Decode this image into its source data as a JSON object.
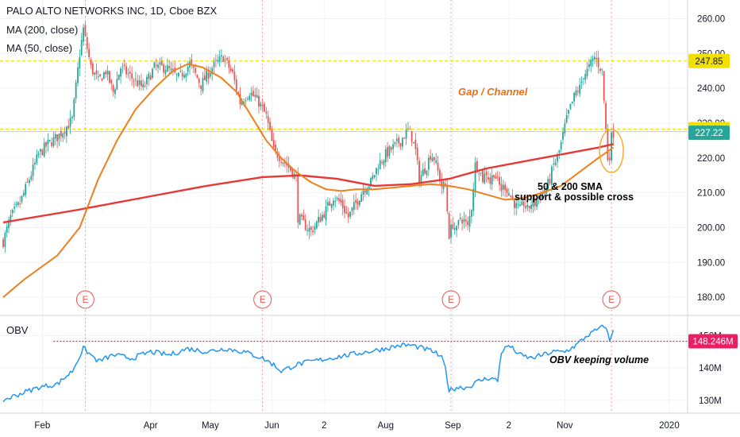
{
  "header": {
    "title": "PALO ALTO NETWORKS INC, 1D, Cboe BZX",
    "ma200_label": "MA (200, close)",
    "ma50_label": "MA (50, close)",
    "obv_label": "OBV"
  },
  "annotations": {
    "gap_channel": "Gap / Channel",
    "sma_line1": "50 & 200 SMA",
    "sma_line2": "support & possible cross",
    "obv_note": "OBV keeping volume"
  },
  "colors": {
    "up": "#26a69a",
    "down": "#ef5350",
    "ma200": "#e53935",
    "ma50": "#ef7f1a",
    "obv_line": "#2196f3",
    "level_line": "#f2e000",
    "obv_level": "#e91e63",
    "earnings": "#ef5350"
  },
  "chart_data": [
    {
      "type": "candlestick",
      "title": "PALO ALTO NETWORKS INC, 1D, Cboe BZX",
      "x_ticks": [
        "Feb",
        "Apr",
        "May",
        "Jun",
        "2",
        "Aug",
        "Sep",
        "2",
        "Nov",
        "2020"
      ],
      "y_ticks": [
        "180.00",
        "190.00",
        "200.00",
        "210.00",
        "220.00",
        "230.00",
        "240.00",
        "250.00",
        "260.00"
      ],
      "ylim": [
        175,
        264
      ],
      "price_labels": [
        {
          "value": 247.85,
          "text": "247.85",
          "color": "#f2e000"
        },
        {
          "value": 228.29,
          "text": "228.29",
          "color": "#f2e000"
        },
        {
          "value": 227.22,
          "text": "227.22",
          "color": "#26a69a"
        }
      ],
      "horizontal_levels": [
        247.85,
        228.29
      ],
      "earnings_markers": [
        "E",
        "E",
        "E",
        "E"
      ],
      "price_path": [
        [
          1,
          196
        ],
        [
          5,
          203
        ],
        [
          10,
          207
        ],
        [
          15,
          214
        ],
        [
          20,
          221
        ],
        [
          25,
          224
        ],
        [
          30,
          226
        ],
        [
          35,
          229
        ],
        [
          38,
          231
        ],
        [
          42,
          250
        ],
        [
          44,
          257
        ],
        [
          48,
          246
        ],
        [
          52,
          242
        ],
        [
          56,
          245
        ],
        [
          60,
          239
        ],
        [
          64,
          246
        ],
        [
          70,
          243
        ],
        [
          76,
          240
        ],
        [
          82,
          246
        ],
        [
          88,
          246
        ],
        [
          95,
          243
        ],
        [
          101,
          247
        ],
        [
          107,
          241
        ],
        [
          113,
          246
        ],
        [
          119,
          249
        ],
        [
          124,
          244
        ],
        [
          128,
          236
        ],
        [
          133,
          239
        ],
        [
          138,
          236
        ],
        [
          142,
          232
        ],
        [
          146,
          222
        ],
        [
          150,
          220
        ],
        [
          153,
          218
        ],
        [
          156,
          216
        ],
        [
          158,
          214
        ],
        [
          159,
          203
        ],
        [
          162,
          201
        ],
        [
          166,
          199
        ],
        [
          170,
          202
        ],
        [
          174,
          205
        ],
        [
          178,
          209
        ],
        [
          182,
          207
        ],
        [
          186,
          203
        ],
        [
          190,
          207
        ],
        [
          194,
          211
        ],
        [
          198,
          213
        ],
        [
          202,
          218
        ],
        [
          206,
          221
        ],
        [
          210,
          223
        ],
        [
          214,
          225
        ],
        [
          218,
          228
        ],
        [
          220,
          226
        ],
        [
          222,
          222
        ],
        [
          224,
          214
        ],
        [
          226,
          216
        ],
        [
          228,
          218
        ],
        [
          230,
          221
        ],
        [
          232,
          220
        ],
        [
          234,
          216
        ],
        [
          236,
          212
        ],
        [
          238,
          212
        ],
        [
          239,
          205
        ],
        [
          240,
          198
        ],
        [
          242,
          201
        ],
        [
          244,
          199
        ],
        [
          246,
          203
        ],
        [
          248,
          202
        ],
        [
          250,
          200
        ],
        [
          252,
          206
        ],
        [
          254,
          218
        ],
        [
          256,
          217
        ],
        [
          258,
          214
        ],
        [
          260,
          216
        ],
        [
          262,
          213
        ],
        [
          264,
          216
        ],
        [
          266,
          213
        ],
        [
          268,
          211
        ],
        [
          270,
          212
        ],
        [
          272,
          210
        ],
        [
          274,
          208
        ],
        [
          276,
          206
        ],
        [
          278,
          205
        ],
        [
          280,
          207
        ],
        [
          282,
          205
        ],
        [
          284,
          207
        ],
        [
          286,
          207
        ],
        [
          288,
          209
        ],
        [
          290,
          210
        ],
        [
          292,
          211
        ],
        [
          294,
          214
        ],
        [
          296,
          218
        ],
        [
          298,
          220
        ],
        [
          300,
          224
        ],
        [
          302,
          229
        ],
        [
          304,
          233
        ],
        [
          306,
          236
        ],
        [
          308,
          239
        ],
        [
          310,
          240
        ],
        [
          312,
          244
        ],
        [
          314,
          245
        ],
        [
          316,
          247
        ],
        [
          318,
          249
        ],
        [
          320,
          247
        ],
        [
          322,
          245
        ],
        [
          324,
          228
        ],
        [
          325,
          220
        ],
        [
          326,
          221
        ],
        [
          327,
          226
        ],
        [
          328,
          227.2
        ]
      ],
      "series": [
        {
          "name": "MA (200, close)",
          "points": [
            [
              1,
              201.5
            ],
            [
              40,
              205
            ],
            [
              80,
              209
            ],
            [
              110,
              212
            ],
            [
              140,
              214.5
            ],
            [
              160,
              215
            ],
            [
              180,
              214
            ],
            [
              200,
              212
            ],
            [
              220,
              212.5
            ],
            [
              240,
              214
            ],
            [
              260,
              217
            ],
            [
              280,
              219
            ],
            [
              300,
              221
            ],
            [
              320,
              223
            ],
            [
              328,
              224
            ]
          ]
        },
        {
          "name": "MA (50, close)",
          "points": [
            [
              1,
              180
            ],
            [
              12,
              185
            ],
            [
              30,
              192
            ],
            [
              42,
              200
            ],
            [
              52,
              214
            ],
            [
              62,
              225
            ],
            [
              72,
              234
            ],
            [
              82,
              240
            ],
            [
              92,
              245
            ],
            [
              100,
              247
            ],
            [
              108,
              246
            ],
            [
              118,
              243
            ],
            [
              126,
              239
            ],
            [
              134,
              232
            ],
            [
              142,
              225
            ],
            [
              150,
              220
            ],
            [
              158,
              216
            ],
            [
              166,
              213
            ],
            [
              174,
              211
            ],
            [
              182,
              210.5
            ],
            [
              190,
              211
            ],
            [
              200,
              211
            ],
            [
              210,
              211.5
            ],
            [
              220,
              212
            ],
            [
              230,
              212.5
            ],
            [
              240,
              212
            ],
            [
              250,
              211
            ],
            [
              260,
              209.5
            ],
            [
              270,
              208
            ],
            [
              280,
              208.5
            ],
            [
              290,
              210
            ],
            [
              300,
              212
            ],
            [
              310,
              216
            ],
            [
              320,
              220
            ],
            [
              328,
              223
            ]
          ]
        }
      ]
    },
    {
      "type": "line",
      "series_label": "OBV",
      "y_ticks": [
        "130M",
        "140M",
        "150M"
      ],
      "ylim": [
        127,
        155
      ],
      "level": {
        "value": 148.246,
        "text": "148.246M"
      },
      "points": [
        [
          1,
          130
        ],
        [
          10,
          132
        ],
        [
          20,
          134
        ],
        [
          30,
          135
        ],
        [
          38,
          139
        ],
        [
          44,
          146
        ],
        [
          52,
          142
        ],
        [
          60,
          144
        ],
        [
          70,
          143
        ],
        [
          80,
          145
        ],
        [
          90,
          144
        ],
        [
          100,
          146
        ],
        [
          110,
          145
        ],
        [
          120,
          146
        ],
        [
          130,
          145
        ],
        [
          140,
          143
        ],
        [
          146,
          141
        ],
        [
          150,
          139
        ],
        [
          158,
          141
        ],
        [
          166,
          142
        ],
        [
          176,
          143
        ],
        [
          186,
          144
        ],
        [
          196,
          145
        ],
        [
          206,
          146
        ],
        [
          214,
          147
        ],
        [
          220,
          147
        ],
        [
          226,
          146
        ],
        [
          232,
          145
        ],
        [
          236,
          143
        ],
        [
          238,
          140
        ],
        [
          240,
          133
        ],
        [
          244,
          134
        ],
        [
          250,
          134
        ],
        [
          256,
          136
        ],
        [
          262,
          137
        ],
        [
          266,
          136
        ],
        [
          268,
          145
        ],
        [
          272,
          147
        ],
        [
          278,
          144
        ],
        [
          284,
          143
        ],
        [
          290,
          144
        ],
        [
          296,
          145
        ],
        [
          302,
          145
        ],
        [
          308,
          147
        ],
        [
          314,
          150
        ],
        [
          320,
          152
        ],
        [
          324,
          153
        ],
        [
          326,
          148
        ],
        [
          328,
          152
        ]
      ]
    }
  ]
}
